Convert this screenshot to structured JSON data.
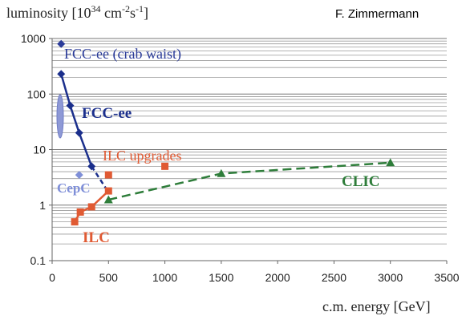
{
  "chart_data": {
    "type": "scatter",
    "ylabel": "luminosity [10",
    "ylabel_exp": "34",
    "ylabel_unit_a": " cm",
    "ylabel_unit_exp_a": "-2",
    "ylabel_unit_b": "s",
    "ylabel_unit_exp_b": "-1",
    "ylabel_close": "]",
    "xlabel": "c.m. energy [GeV]",
    "author": "F. Zimmermann",
    "xlim": [
      0,
      3500
    ],
    "ylim": [
      0.1,
      1000
    ],
    "y_scale": "log",
    "grid": true,
    "x_ticks": [
      "0",
      "500",
      "1000",
      "1500",
      "2000",
      "2500",
      "3000",
      "3500"
    ],
    "y_ticks": [
      "0.1",
      "1",
      "10",
      "100",
      "1000"
    ],
    "colors": {
      "fcc": "#1b2f8c",
      "fcc_crab": "#2a3b99",
      "cepc": "#7f8fd8",
      "ilc": "#e05a33",
      "clic": "#2e7d3a",
      "grid": "#9a9a9a"
    },
    "series": [
      {
        "name": "FCC-ee (crab waist)",
        "style": "point",
        "points": [
          {
            "x": 80,
            "y": 800
          }
        ]
      },
      {
        "name": "FCC-ee",
        "style": "line",
        "points": [
          {
            "x": 80,
            "y": 230
          },
          {
            "x": 160,
            "y": 62
          },
          {
            "x": 240,
            "y": 20
          },
          {
            "x": 350,
            "y": 5
          }
        ],
        "dashed_extension": [
          {
            "x": 350,
            "y": 5
          },
          {
            "x": 500,
            "y": 1.7
          }
        ]
      },
      {
        "name": "CepC",
        "style": "points",
        "points": [
          {
            "x": 240,
            "y": 3.5
          }
        ]
      },
      {
        "name": "ILC",
        "style": "line",
        "points": [
          {
            "x": 200,
            "y": 0.5
          },
          {
            "x": 250,
            "y": 0.75
          },
          {
            "x": 350,
            "y": 0.93
          },
          {
            "x": 500,
            "y": 1.8
          }
        ]
      },
      {
        "name": "ILC upgrades",
        "style": "points",
        "points": [
          {
            "x": 500,
            "y": 3.5
          },
          {
            "x": 1000,
            "y": 5
          }
        ]
      },
      {
        "name": "CLIC",
        "style": "dashed",
        "points": [
          {
            "x": 500,
            "y": 1.25
          },
          {
            "x": 1500,
            "y": 3.7
          },
          {
            "x": 3000,
            "y": 5.8
          }
        ]
      }
    ],
    "annotations": {
      "fcc_crab_label": "FCC-ee (crab waist)",
      "fcc_label": "FCC-ee",
      "cepc_label": "CepC",
      "ilc_label": "ILC",
      "ilc_upgrades_label": "ILC upgrades",
      "clic_label": "CLIC"
    }
  }
}
